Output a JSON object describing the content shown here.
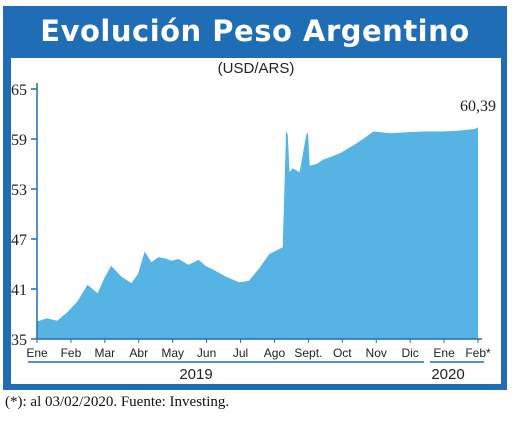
{
  "title": "Evolución Peso Argentino",
  "subtitle": "(USD/ARS)",
  "footnote": "(*): al 03/02/2020. Fuente: Investing.",
  "last_value_label": "60,39",
  "colors": {
    "frame": "#1f6db5",
    "area": "#55b4e4",
    "axis": "#1f6db5",
    "text": "#222222"
  },
  "chart_data": {
    "type": "area",
    "title": "Evolución Peso Argentino",
    "ylabel": "(USD/ARS)",
    "ylim": [
      35,
      65
    ],
    "yticks": [
      35,
      41,
      47,
      53,
      59,
      65
    ],
    "grid": false,
    "month_labels": [
      "Ene",
      "Feb",
      "Mar",
      "Abr",
      "May",
      "Jun",
      "Jul",
      "Ago",
      "Sept.",
      "Oct",
      "Nov",
      "Dic",
      "Ene",
      "Feb*"
    ],
    "year_labels": [
      "2019",
      "2020"
    ],
    "x": [
      0,
      0.3,
      0.6,
      0.9,
      1.2,
      1.5,
      1.8,
      2.0,
      2.2,
      2.5,
      2.8,
      3.0,
      3.2,
      3.4,
      3.6,
      3.8,
      4.0,
      4.2,
      4.5,
      4.8,
      5.0,
      5.3,
      5.6,
      6.0,
      6.3,
      6.6,
      6.9,
      7.1,
      7.3,
      7.4,
      7.45,
      7.5,
      7.6,
      7.8,
      8.0,
      8.05,
      8.1,
      8.3,
      8.5,
      9.0,
      9.3,
      9.5,
      10.0,
      10.5,
      11.0,
      11.5,
      12.0,
      12.5,
      13.0,
      13.1
    ],
    "series": [
      {
        "values": [
          37.1,
          37.5,
          37.2,
          38.2,
          39.5,
          41.5,
          40.5,
          42.3,
          43.8,
          42.5,
          41.7,
          42.8,
          45.5,
          44.2,
          44.8,
          44.7,
          44.4,
          44.6,
          43.9,
          44.5,
          43.8,
          43.2,
          42.5,
          41.8,
          42.0,
          43.5,
          45.2,
          45.6,
          46.0,
          60.0,
          59.5,
          55.0,
          55.5,
          55.0,
          59.5,
          59.8,
          55.8,
          56.0,
          56.5,
          57.3,
          58.0,
          58.5,
          59.9,
          59.7,
          59.8,
          59.9,
          59.9,
          60.0,
          60.2,
          60.39
        ]
      }
    ]
  }
}
